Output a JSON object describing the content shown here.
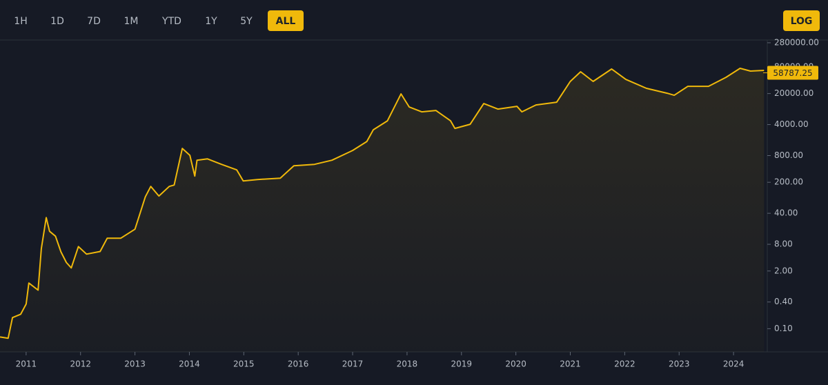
{
  "toolbar": {
    "ranges": [
      "1H",
      "1D",
      "7D",
      "1M",
      "YTD",
      "1Y",
      "5Y",
      "ALL"
    ],
    "active_range": "ALL",
    "scale_button": "LOG"
  },
  "chart_data": {
    "type": "line",
    "log_scale": true,
    "color": "#f0b90b",
    "x": [
      2010.52,
      2010.67,
      2010.75,
      2010.9,
      2011.0,
      2011.05,
      2011.22,
      2011.28,
      2011.37,
      2011.43,
      2011.54,
      2011.64,
      2011.74,
      2011.83,
      2011.96,
      2012.11,
      2012.36,
      2012.49,
      2012.74,
      2013.0,
      2013.19,
      2013.29,
      2013.44,
      2013.63,
      2013.72,
      2013.87,
      2014.01,
      2014.1,
      2014.14,
      2014.33,
      2014.59,
      2014.87,
      2014.99,
      2015.25,
      2015.67,
      2015.92,
      2016.3,
      2016.62,
      2017.0,
      2017.26,
      2017.38,
      2017.64,
      2017.89,
      2018.04,
      2018.27,
      2018.53,
      2018.8,
      2018.88,
      2019.16,
      2019.41,
      2019.67,
      2020.02,
      2020.11,
      2020.37,
      2020.75,
      2021.0,
      2021.19,
      2021.42,
      2021.76,
      2022.02,
      2022.4,
      2022.78,
      2022.91,
      2023.16,
      2023.54,
      2023.86,
      2024.12,
      2024.31,
      2024.56
    ],
    "values": [
      0.065,
      0.061,
      0.178,
      0.212,
      0.36,
      1.07,
      0.74,
      6.4,
      32,
      15.7,
      12.2,
      5.4,
      3.1,
      2.35,
      7.1,
      4.8,
      5.5,
      11,
      11,
      17.5,
      94,
      161,
      98,
      161,
      173,
      1160,
      810,
      276,
      630,
      677,
      507,
      381,
      215,
      231,
      248,
      472,
      507,
      630,
      1041,
      1660,
      3055,
      4870,
      19700,
      9960,
      7750,
      8330,
      4870,
      3280,
      4070,
      11900,
      8940,
      10330,
      7750,
      11100,
      12800,
      37600,
      62000,
      37600,
      71600,
      41800,
      26300,
      20400,
      18300,
      29200,
      29200,
      46500,
      74200,
      64300,
      66600
    ],
    "last_price": 58787.25,
    "xlim": [
      2010.52,
      2024.62
    ],
    "xticks": [
      2011,
      2012,
      2013,
      2014,
      2015,
      2016,
      2017,
      2018,
      2019,
      2020,
      2021,
      2022,
      2023,
      2024
    ],
    "ylim": [
      0.03,
      400000
    ],
    "yticks": [
      {
        "value": 280000,
        "label": "280000.00"
      },
      {
        "value": 80000,
        "label": "80000.00"
      },
      {
        "value": 20000,
        "label": "20000.00"
      },
      {
        "value": 4000,
        "label": "4000.00"
      },
      {
        "value": 800,
        "label": "800.00"
      },
      {
        "value": 200,
        "label": "200.00"
      },
      {
        "value": 40,
        "label": "40.00"
      },
      {
        "value": 8,
        "label": "8.00"
      },
      {
        "value": 2,
        "label": "2.00"
      },
      {
        "value": 0.4,
        "label": "0.40"
      },
      {
        "value": 0.1,
        "label": "0.10"
      }
    ]
  }
}
